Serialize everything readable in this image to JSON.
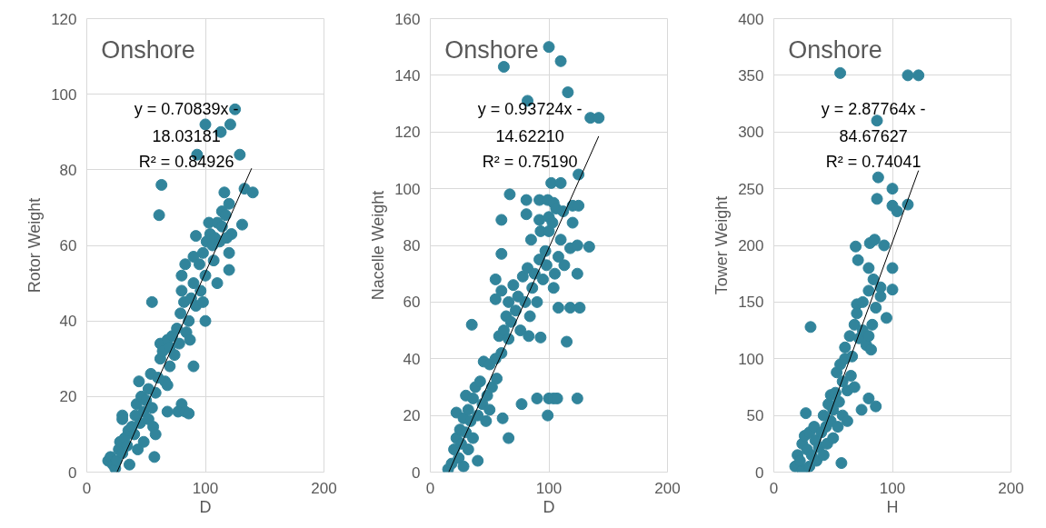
{
  "chart_data": [
    {
      "type": "scatter",
      "title": "Onshore",
      "xlabel": "D",
      "ylabel": "Rotor Weight",
      "xlim": [
        0,
        200
      ],
      "xticks": [
        0,
        100,
        200
      ],
      "ylim": [
        0,
        120
      ],
      "yticks": [
        0,
        20,
        40,
        60,
        80,
        100,
        120
      ],
      "grid": true,
      "annotations": [
        "y = 0.70839x - 18.03181",
        "R² = 0.84926"
      ],
      "series": [
        {
          "marker": "circle",
          "color": "#31849b",
          "x": [
            100,
            121,
            113,
            125,
            93,
            129,
            63,
            61,
            133,
            140,
            116,
            120,
            114,
            103,
            131,
            122,
            92,
            120,
            120,
            107,
            110,
            100,
            55,
            90,
            57,
            80,
            77,
            83,
            68,
            86,
            30,
            30,
            18,
            20,
            22,
            24,
            25,
            27,
            28,
            30,
            32,
            34,
            35,
            36,
            38,
            40,
            41,
            42,
            43,
            44,
            45,
            46,
            48,
            48,
            50,
            52,
            52,
            54,
            55,
            56,
            58,
            58,
            60,
            62,
            62,
            64,
            66,
            68,
            68,
            70,
            70,
            72,
            74,
            76,
            78,
            79,
            80,
            80,
            82,
            83,
            84,
            86,
            87,
            88,
            90,
            90,
            92,
            95,
            96,
            98,
            98,
            100,
            101,
            104,
            106,
            108,
            110,
            112,
            114,
            117,
            118
          ],
          "values": [
            92,
            92,
            90,
            96,
            84,
            84,
            76,
            68,
            75,
            74,
            74,
            71,
            69,
            66,
            65.5,
            63,
            62.5,
            58,
            53.5,
            56,
            50,
            40,
            45,
            28,
            4,
            18,
            16,
            16,
            16,
            15.5,
            15,
            14,
            3,
            4,
            2,
            1,
            3,
            6,
            8,
            5,
            9,
            7,
            11,
            2,
            12,
            10,
            15,
            18,
            6,
            24,
            13,
            20,
            16,
            8,
            19,
            14,
            22,
            26,
            17,
            12,
            21,
            10,
            25,
            30,
            34,
            32,
            24,
            23,
            35,
            33,
            28,
            36,
            31,
            38,
            34,
            42,
            52,
            48,
            45,
            55,
            37,
            40,
            35,
            46,
            50,
            57,
            44,
            55,
            48,
            45,
            58,
            52,
            61,
            63,
            60,
            62,
            66,
            61,
            65,
            68,
            62
          ]
        },
        {
          "type": "line",
          "marker": "none",
          "color": "#000000",
          "x": [
            25.5,
            139
          ],
          "values": [
            0,
            80.4
          ]
        }
      ]
    },
    {
      "type": "scatter",
      "title": "Onshore",
      "xlabel": "D",
      "ylabel": "Nacelle Weight",
      "xlim": [
        0,
        200
      ],
      "xticks": [
        0,
        100,
        200
      ],
      "ylim": [
        0,
        160
      ],
      "yticks": [
        0,
        20,
        40,
        60,
        80,
        100,
        120,
        140,
        160
      ],
      "grid": true,
      "annotations": [
        "y = 0.93724x - 14.62210",
        "R² = 0.75190"
      ],
      "series": [
        {
          "marker": "circle",
          "color": "#31849b",
          "x": [
            100,
            110,
            62,
            116,
            82,
            135,
            142,
            102,
            110,
            125,
            67,
            60,
            81,
            92,
            99,
            104,
            120,
            125,
            81,
            92,
            120,
            93,
            100,
            85,
            110,
            97,
            118,
            124,
            134,
            60,
            113,
            124,
            105,
            104,
            108,
            118,
            126,
            115,
            93,
            83,
            35,
            55,
            55,
            90,
            100,
            104,
            107,
            124,
            99,
            77,
            61,
            66,
            15,
            40,
            18,
            20,
            22,
            22,
            24,
            25,
            26,
            28,
            28,
            30,
            30,
            32,
            32,
            34,
            36,
            36,
            38,
            40,
            42,
            44,
            45,
            47,
            48,
            50,
            50,
            52,
            55,
            56,
            58,
            60,
            60,
            62,
            64,
            66,
            66,
            68,
            70,
            72,
            74,
            76,
            78,
            80,
            82,
            84,
            86,
            88,
            90,
            92,
            95,
            98,
            100,
            103,
            106,
            108,
            112
          ],
          "values": [
            150,
            145,
            143,
            134,
            131,
            125,
            125,
            102,
            102,
            105,
            98,
            89,
            96,
            96,
            96,
            95,
            94,
            94,
            91,
            89,
            88,
            85,
            85,
            82,
            82,
            78,
            79,
            80,
            79.5,
            77,
            73,
            70,
            70,
            65,
            58,
            58,
            58,
            46,
            47.5,
            48,
            52,
            61,
            68,
            26,
            26,
            26,
            26,
            26,
            20,
            24,
            19,
            12,
            1,
            4,
            3,
            8,
            12,
            21,
            5,
            15,
            10,
            2,
            19,
            27,
            14,
            8,
            22,
            18,
            12,
            26,
            30,
            20,
            32,
            24,
            39,
            18,
            27,
            22,
            38,
            30,
            40,
            33,
            48,
            42,
            64,
            50,
            55,
            47,
            60,
            53,
            66,
            57,
            62,
            50,
            69,
            60,
            72,
            55,
            65,
            70,
            60,
            75,
            68,
            73,
            90,
            88,
            93,
            76,
            92
          ]
        },
        {
          "type": "line",
          "marker": "none",
          "color": "#000000",
          "x": [
            15.6,
            142
          ],
          "values": [
            0,
            118.5
          ]
        }
      ]
    },
    {
      "type": "scatter",
      "title": "Onshore",
      "xlabel": "H",
      "ylabel": "Tower Weight",
      "xlim": [
        0,
        200
      ],
      "xticks": [
        0,
        100,
        200
      ],
      "ylim": [
        0,
        400
      ],
      "yticks": [
        0,
        50,
        100,
        150,
        200,
        250,
        300,
        350,
        400
      ],
      "grid": true,
      "annotations": [
        "y = 2.87764x - 84.67627",
        "R² = 0.74041"
      ],
      "series": [
        {
          "marker": "circle",
          "color": "#31849b",
          "x": [
            56,
            113,
            122,
            87,
            88,
            100,
            87,
            100,
            113,
            104,
            69,
            81,
            85,
            93,
            71,
            80,
            100,
            84,
            100,
            80,
            90,
            90,
            95,
            86,
            70,
            75,
            31,
            27,
            80,
            86,
            74,
            18,
            24,
            57,
            20,
            22,
            24,
            26,
            28,
            30,
            30,
            32,
            34,
            35,
            36,
            38,
            40,
            42,
            42,
            44,
            45,
            46,
            48,
            48,
            50,
            50,
            52,
            53,
            54,
            55,
            56,
            58,
            58,
            60,
            60,
            62,
            62,
            64,
            65,
            66,
            68,
            68,
            70,
            72,
            75,
            78,
            80,
            82,
            83
          ],
          "values": [
            352,
            350,
            350,
            310,
            260,
            250,
            241,
            235,
            236,
            230,
            199,
            202,
            205,
            200,
            187,
            180,
            180,
            170,
            161,
            160,
            163,
            155,
            136,
            145,
            148,
            150,
            128,
            52,
            65,
            58,
            55,
            5,
            2,
            8,
            15,
            10,
            25,
            32,
            20,
            5,
            35,
            15,
            40,
            28,
            10,
            22,
            35,
            15,
            50,
            40,
            25,
            60,
            45,
            68,
            30,
            55,
            70,
            88,
            40,
            62,
            95,
            50,
            80,
            100,
            110,
            72,
            45,
            120,
            85,
            102,
            130,
            75,
            140,
            118,
            125,
            112,
            120,
            108,
            130
          ]
        },
        {
          "type": "line",
          "marker": "none",
          "color": "#000000",
          "x": [
            29.4,
            122
          ],
          "values": [
            0,
            266
          ]
        }
      ]
    }
  ]
}
